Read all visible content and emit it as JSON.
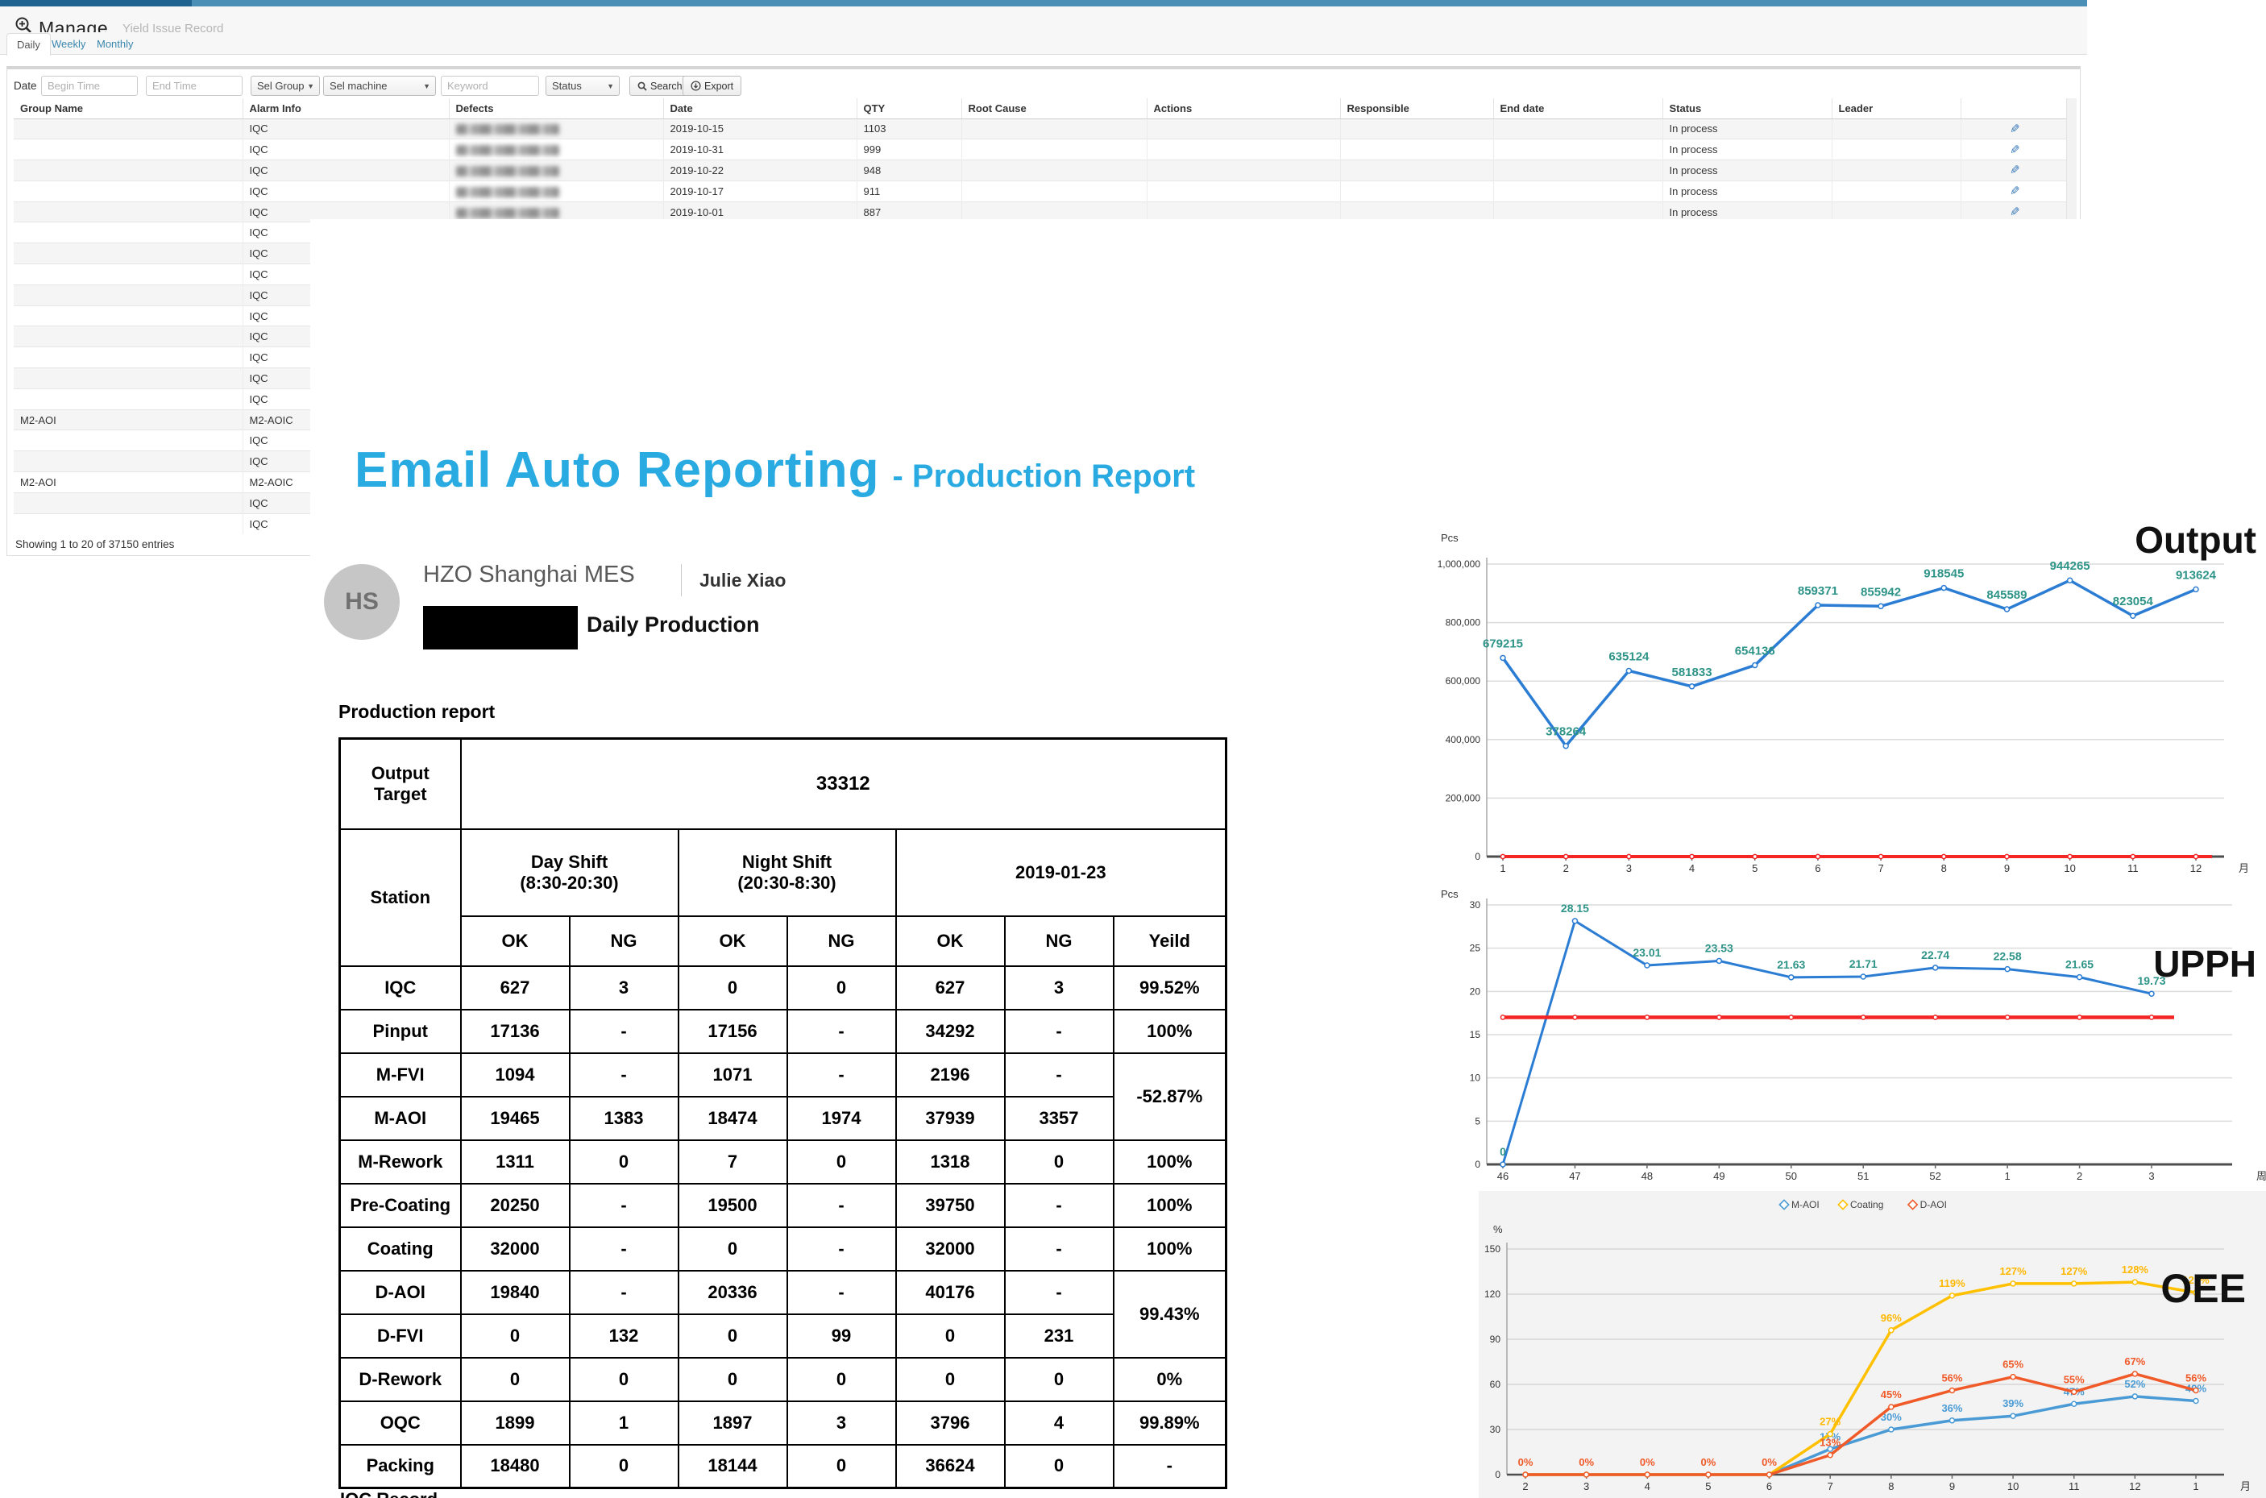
{
  "app": {
    "header": {
      "title": "Manage",
      "subtitle": "Yield Issue Record",
      "icon": "zoom-in-icon"
    },
    "tabs": [
      {
        "label": "Daily",
        "active": true
      },
      {
        "label": "Weekly",
        "active": false
      },
      {
        "label": "Monthly",
        "active": false
      }
    ],
    "filters": {
      "date_label": "Date",
      "begin_placeholder": "Begin Time",
      "end_placeholder": "End Time",
      "group_select": "Sel Group",
      "machine_select": "Sel machine",
      "keyword_placeholder": "Keyword",
      "status_select": "Status",
      "search_label": "Search",
      "export_label": "Export"
    },
    "table": {
      "columns": [
        "Group Name",
        "Alarm Info",
        "Defects",
        "Date",
        "QTY",
        "Root Cause",
        "Actions",
        "Responsible",
        "End date",
        "Status",
        "Leader",
        ""
      ],
      "rows": [
        {
          "group": "",
          "alarm": "IQC",
          "defects_blurred": true,
          "date": "2019-10-15",
          "qty": "1103",
          "root_cause": "",
          "actions": "",
          "responsible": "",
          "end_date": "",
          "status": "In process",
          "leader": "",
          "edit": true
        },
        {
          "group": "",
          "alarm": "IQC",
          "defects_blurred": true,
          "date": "2019-10-31",
          "qty": "999",
          "root_cause": "",
          "actions": "",
          "responsible": "",
          "end_date": "",
          "status": "In process",
          "leader": "",
          "edit": true
        },
        {
          "group": "",
          "alarm": "IQC",
          "defects_blurred": true,
          "date": "2019-10-22",
          "qty": "948",
          "root_cause": "",
          "actions": "",
          "responsible": "",
          "end_date": "",
          "status": "In process",
          "leader": "",
          "edit": true
        },
        {
          "group": "",
          "alarm": "IQC",
          "defects_blurred": true,
          "date": "2019-10-17",
          "qty": "911",
          "root_cause": "",
          "actions": "",
          "responsible": "",
          "end_date": "",
          "status": "In process",
          "leader": "",
          "edit": true
        },
        {
          "group": "",
          "alarm": "IQC",
          "defects_blurred": true,
          "date": "2019-10-01",
          "qty": "887",
          "root_cause": "",
          "actions": "",
          "responsible": "",
          "end_date": "",
          "status": "In process",
          "leader": "",
          "edit": true
        },
        {
          "group": "",
          "alarm": "IQC"
        },
        {
          "group": "",
          "alarm": "IQC"
        },
        {
          "group": "",
          "alarm": "IQC"
        },
        {
          "group": "",
          "alarm": "IQC"
        },
        {
          "group": "",
          "alarm": "IQC"
        },
        {
          "group": "",
          "alarm": "IQC"
        },
        {
          "group": "",
          "alarm": "IQC"
        },
        {
          "group": "",
          "alarm": "IQC"
        },
        {
          "group": "",
          "alarm": "IQC"
        },
        {
          "group": "M2-AOI",
          "alarm": "M2-AOIC"
        },
        {
          "group": "",
          "alarm": "IQC"
        },
        {
          "group": "",
          "alarm": "IQC"
        },
        {
          "group": "M2-AOI",
          "alarm": "M2-AOIC"
        },
        {
          "group": "",
          "alarm": "IQC"
        },
        {
          "group": "",
          "alarm": "IQC"
        }
      ],
      "footer": "Showing 1 to 20 of 37150 entries"
    }
  },
  "email": {
    "title": "Email Auto Reporting",
    "subtitle": "- Production Report",
    "avatar_initials": "HS",
    "sender": "HZO Shanghai MES",
    "contact": "Julie Xiao",
    "subject_suffix": "Daily Production",
    "report_heading": "Production report",
    "production_table": {
      "output_target_label_line1": "Output",
      "output_target_label_line2": "Target",
      "output_target_value": "33312",
      "station_label": "Station",
      "day_shift_line1": "Day Shift",
      "day_shift_line2": "(8:30-20:30)",
      "night_shift_line1": "Night Shift",
      "night_shift_line2": "(20:30-8:30)",
      "date": "2019-01-23",
      "sub_headers": [
        "OK",
        "NG",
        "OK",
        "NG",
        "OK",
        "NG",
        "Yeild"
      ],
      "rows": [
        {
          "station": "IQC",
          "cells": [
            "627",
            "3",
            "0",
            "0",
            "627",
            "3"
          ],
          "yield": "99.52%"
        },
        {
          "station": "Pinput",
          "cells": [
            "17136",
            "-",
            "17156",
            "-",
            "34292",
            "-"
          ],
          "yield": "100%"
        },
        {
          "station": "M-FVI",
          "cells": [
            "1094",
            "-",
            "1071",
            "-",
            "2196",
            "-"
          ],
          "yield": "-52.87%",
          "yield_span": 2
        },
        {
          "station": "M-AOI",
          "cells": [
            "19465",
            "1383",
            "18474",
            "1974",
            "37939",
            "3357"
          ],
          "yield": null
        },
        {
          "station": "M-Rework",
          "cells": [
            "1311",
            "0",
            "7",
            "0",
            "1318",
            "0"
          ],
          "yield": "100%"
        },
        {
          "station": "Pre-Coating",
          "cells": [
            "20250",
            "-",
            "19500",
            "-",
            "39750",
            "-"
          ],
          "yield": "100%"
        },
        {
          "station": "Coating",
          "cells": [
            "32000",
            "-",
            "0",
            "-",
            "32000",
            "-"
          ],
          "yield": "100%"
        },
        {
          "station": "D-AOI",
          "cells": [
            "19840",
            "-",
            "20336",
            "-",
            "40176",
            "-"
          ],
          "yield": "99.43%",
          "yield_span": 2
        },
        {
          "station": "D-FVI",
          "cells": [
            "0",
            "132",
            "0",
            "99",
            "0",
            "231"
          ],
          "yield": null
        },
        {
          "station": "D-Rework",
          "cells": [
            "0",
            "0",
            "0",
            "0",
            "0",
            "0"
          ],
          "yield": "0%"
        },
        {
          "station": "OQC",
          "cells": [
            "1899",
            "1",
            "1897",
            "3",
            "3796",
            "4"
          ],
          "yield": "99.89%"
        },
        {
          "station": "Packing",
          "cells": [
            "18480",
            "0",
            "18144",
            "0",
            "36624",
            "0"
          ],
          "yield": "-"
        }
      ],
      "clipped_text": "IQC Record"
    }
  },
  "chart_data": [
    {
      "id": "output",
      "type": "line",
      "title": "Output",
      "ylabel": "Pcs",
      "xlabel": "月",
      "categories": [
        "1",
        "2",
        "3",
        "4",
        "5",
        "6",
        "7",
        "8",
        "9",
        "10",
        "11",
        "12"
      ],
      "ylim": [
        0,
        1000000
      ],
      "yticks": [
        {
          "v": 0,
          "label": "0"
        },
        {
          "v": 200000,
          "label": "200,000"
        },
        {
          "v": 400000,
          "label": "400,000"
        },
        {
          "v": 600000,
          "label": "600,000"
        },
        {
          "v": 800000,
          "label": "800,000"
        },
        {
          "v": 1000000,
          "label": "1,000,000"
        }
      ],
      "grid": true,
      "legend_position": "none",
      "series": [
        {
          "name": "Output",
          "color": "#2b7cd3",
          "width": 3.5,
          "label_color": "#2e9488",
          "values": [
            679215,
            378264,
            635124,
            581833,
            654136,
            859371,
            855942,
            918545,
            845589,
            944265,
            823054,
            913624
          ],
          "labels": [
            "679215",
            "378264",
            "635124",
            "581833",
            "654136",
            "859371",
            "855942",
            "918545",
            "845589",
            "944265",
            "823054",
            "913624"
          ]
        },
        {
          "name": "Target",
          "color": "#f42525",
          "width": 4,
          "label_color": null,
          "values": [
            0,
            0,
            0,
            0,
            0,
            0,
            0,
            0,
            0,
            0,
            0,
            0
          ],
          "labels": []
        }
      ]
    },
    {
      "id": "upph",
      "type": "line",
      "title": "UPPH",
      "ylabel": "Pcs",
      "xlabel": "周",
      "categories": [
        "46",
        "47",
        "48",
        "49",
        "50",
        "51",
        "52",
        "1",
        "2",
        "3"
      ],
      "ylim": [
        0,
        30
      ],
      "yticks": [
        {
          "v": 0,
          "label": "0"
        },
        {
          "v": 5,
          "label": "5"
        },
        {
          "v": 10,
          "label": "10"
        },
        {
          "v": 15,
          "label": "15"
        },
        {
          "v": 20,
          "label": "20"
        },
        {
          "v": 25,
          "label": "25"
        },
        {
          "v": 30,
          "label": "30"
        }
      ],
      "grid": true,
      "legend_position": "none",
      "series": [
        {
          "name": "UPPH",
          "color": "#2b7cd3",
          "width": 3,
          "label_color": "#2e9488",
          "values": [
            0,
            28.15,
            23.01,
            23.53,
            21.63,
            21.71,
            22.74,
            22.58,
            21.65,
            19.73
          ],
          "labels": [
            "0",
            "28.15",
            "23.01",
            "23.53",
            "21.63",
            "21.71",
            "22.74",
            "22.58",
            "21.65",
            "19.73"
          ]
        },
        {
          "name": "Target",
          "color": "#f42525",
          "width": 4.5,
          "label_color": null,
          "values": [
            17,
            17,
            17,
            17,
            17,
            17,
            17,
            17,
            17,
            17
          ],
          "labels": []
        }
      ]
    },
    {
      "id": "oee",
      "type": "line",
      "title": "OEE",
      "ylabel": "%",
      "xlabel": "月",
      "categories": [
        "2",
        "3",
        "4",
        "5",
        "6",
        "7",
        "8",
        "9",
        "10",
        "11",
        "12",
        "1"
      ],
      "ylim": [
        0,
        150
      ],
      "yticks": [
        {
          "v": 0,
          "label": "0"
        },
        {
          "v": 30,
          "label": "30"
        },
        {
          "v": 60,
          "label": "60"
        },
        {
          "v": 90,
          "label": "90"
        },
        {
          "v": 120,
          "label": "120"
        },
        {
          "v": 150,
          "label": "150"
        }
      ],
      "grid": true,
      "legend_position": "top",
      "legend": [
        {
          "label": "M-AOI",
          "color": "#4a9bd5"
        },
        {
          "label": "Coating",
          "color": "#ffc000"
        },
        {
          "label": "D-AOI",
          "color": "#f05a28"
        }
      ],
      "series": [
        {
          "name": "M-AOI",
          "color": "#4a9bd5",
          "width": 3.5,
          "label_color": "#4a9bd5",
          "values": [
            0,
            0,
            0,
            0,
            0,
            17,
            30,
            36,
            39,
            47,
            52,
            49
          ],
          "labels": [
            null,
            null,
            null,
            null,
            null,
            "17%",
            "30%",
            "36%",
            "39%",
            "47%",
            "52%",
            "49%"
          ]
        },
        {
          "name": "Coating",
          "color": "#ffc000",
          "width": 3.5,
          "label_color": "#ffb800",
          "values": [
            0,
            0,
            0,
            0,
            0,
            27,
            96,
            119,
            127,
            127,
            128,
            121
          ],
          "labels": [
            null,
            null,
            null,
            null,
            null,
            "27%",
            "96%",
            "119%",
            "127%",
            "127%",
            "128%",
            "121%"
          ]
        },
        {
          "name": "D-AOI",
          "color": "#f05a28",
          "width": 3.5,
          "label_color": "#f05a28",
          "values": [
            0,
            0,
            0,
            0,
            0,
            13,
            45,
            56,
            65,
            55,
            67,
            56
          ],
          "labels": [
            "0%",
            "0%",
            "0%",
            "0%",
            "0%",
            "13%",
            "45%",
            "56%",
            "65%",
            "55%",
            "67%",
            "56%"
          ]
        }
      ]
    }
  ]
}
